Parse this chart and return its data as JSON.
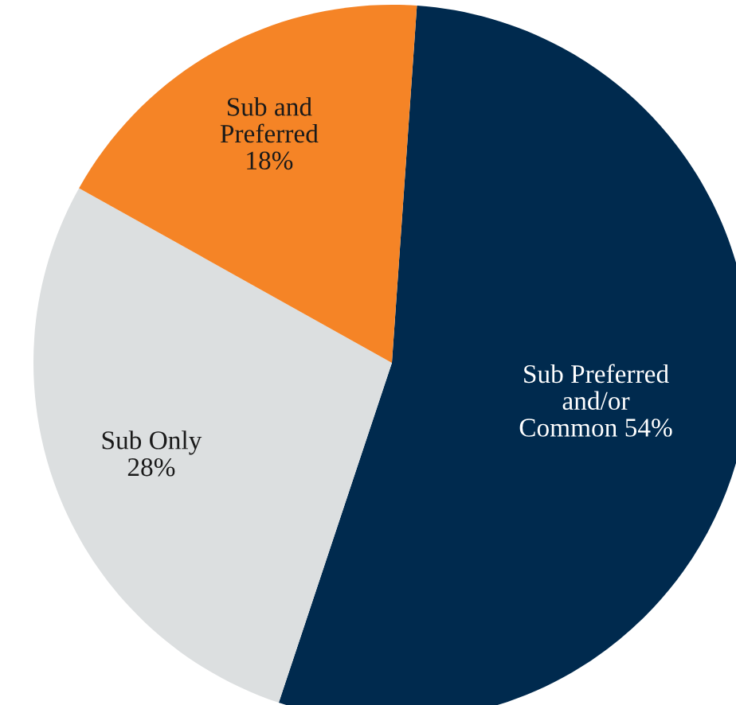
{
  "chart_data": {
    "type": "pie",
    "categories": [
      "Sub Preferred\nand/or\nCommon",
      "Sub Only",
      "Sub and\nPreferred"
    ],
    "values": [
      54,
      28,
      18
    ],
    "colors": [
      "#002a4e",
      "#dcdfe0",
      "#f58426"
    ],
    "value_labels": [
      "54%",
      "28%",
      "18%"
    ],
    "legend": false
  }
}
